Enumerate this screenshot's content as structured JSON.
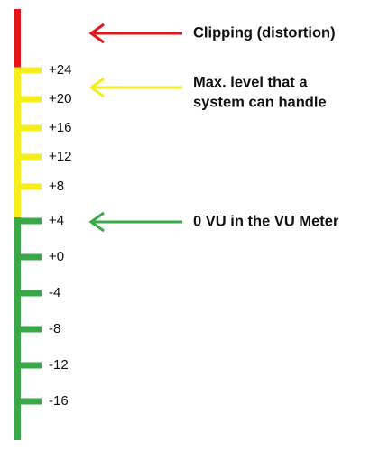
{
  "scale": {
    "ticks": [
      "+24",
      "+20",
      "+16",
      "+12",
      "+8",
      "+4",
      "+0",
      "-4",
      "-8",
      "-12",
      "-16"
    ]
  },
  "annotations": [
    {
      "lines": [
        "Clipping (distortion)"
      ]
    },
    {
      "lines": [
        "Max. level that a",
        "system can handle"
      ]
    },
    {
      "lines": [
        "0 VU in the VU Meter"
      ]
    }
  ]
}
